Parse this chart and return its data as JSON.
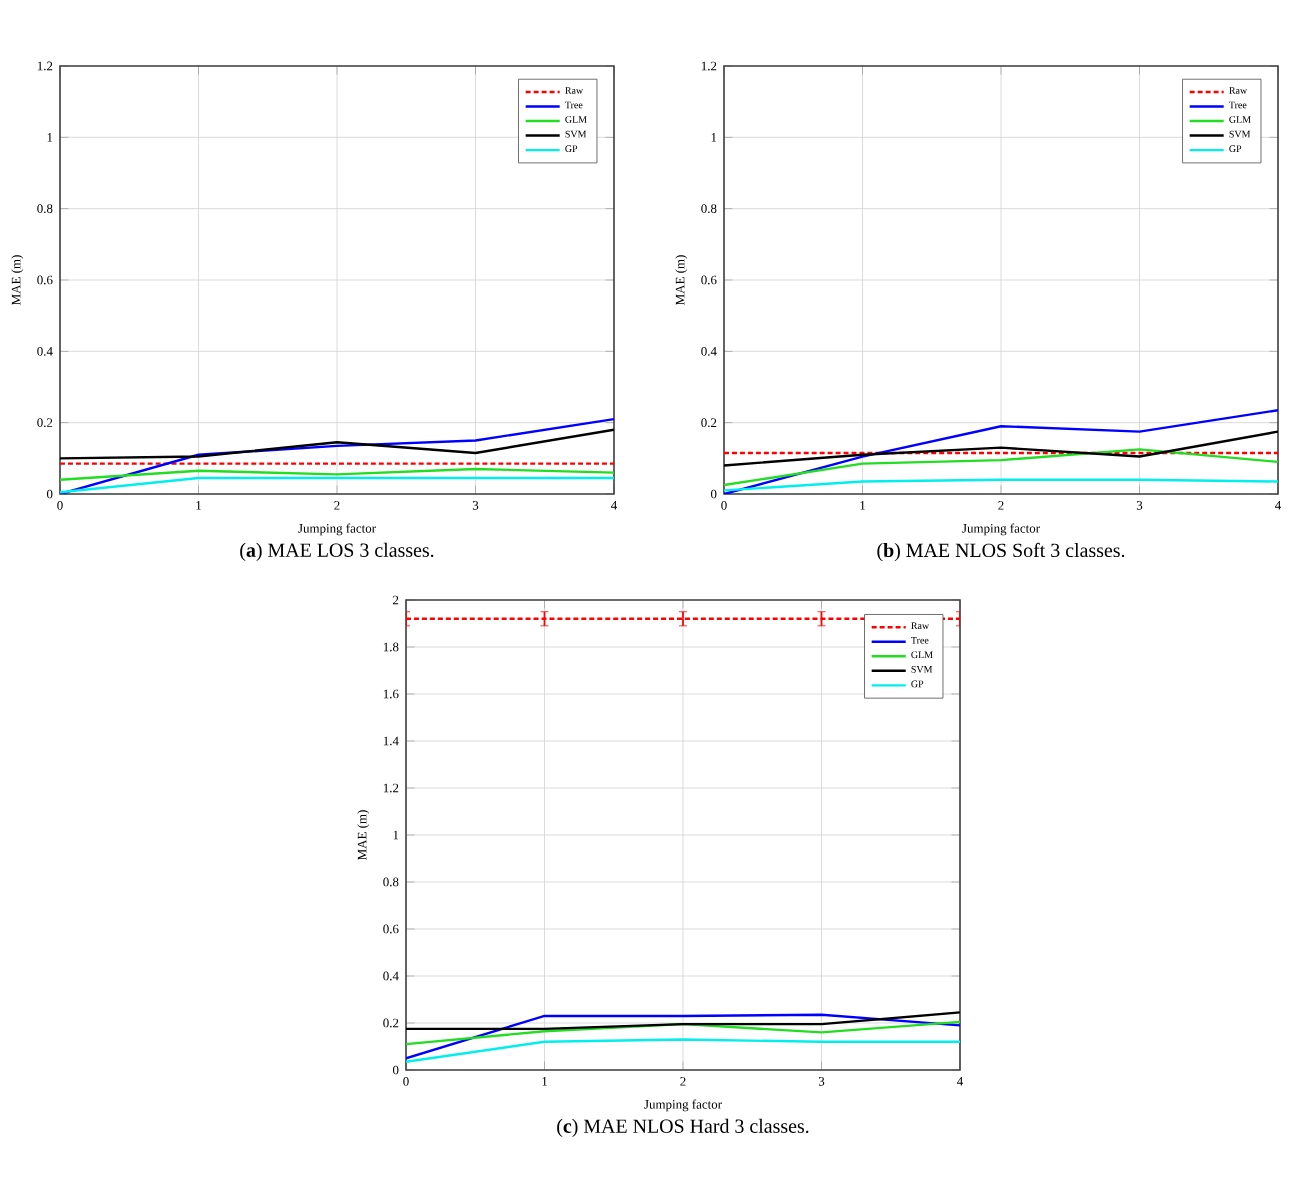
{
  "chart_data": [
    {
      "type": "line",
      "title": "(**a**) MAE LOS 3 classes.",
      "xlabel": "Jumping factor",
      "ylabel": "MAE (m)",
      "x": [
        0,
        1,
        2,
        3,
        4
      ],
      "xlim": [
        0,
        4
      ],
      "xticks": [
        0,
        1,
        2,
        3,
        4
      ],
      "ylim": [
        0,
        1.2
      ],
      "yticks": [
        0,
        0.2,
        0.4,
        0.6,
        0.8,
        1,
        1.2
      ],
      "grid": true,
      "legend": "top right",
      "marker": "none",
      "series": [
        {
          "name": "Raw",
          "color": "#ff0000",
          "line_style": "dashed",
          "values": [
            0.085,
            0.085,
            0.085,
            0.085,
            0.085
          ]
        },
        {
          "name": "Tree",
          "color": "#0000ff",
          "values": [
            0.0,
            0.11,
            0.135,
            0.15,
            0.21
          ]
        },
        {
          "name": "GLM",
          "color": "#22dd22",
          "values": [
            0.04,
            0.065,
            0.055,
            0.07,
            0.06
          ]
        },
        {
          "name": "SVM",
          "color": "#000000",
          "values": [
            0.1,
            0.105,
            0.145,
            0.115,
            0.18
          ]
        },
        {
          "name": "GP",
          "color": "#00eeee",
          "values": [
            0.005,
            0.045,
            0.045,
            0.045,
            0.045
          ]
        }
      ]
    },
    {
      "type": "line",
      "title": "(**b**) MAE NLOS Soft 3 classes.",
      "xlabel": "Jumping factor",
      "ylabel": "MAE (m)",
      "x": [
        0,
        1,
        2,
        3,
        4
      ],
      "xlim": [
        0,
        4
      ],
      "xticks": [
        0,
        1,
        2,
        3,
        4
      ],
      "ylim": [
        0,
        1.2
      ],
      "yticks": [
        0,
        0.2,
        0.4,
        0.6,
        0.8,
        1,
        1.2
      ],
      "grid": true,
      "legend": "top right",
      "marker": "none",
      "series": [
        {
          "name": "Raw",
          "color": "#ff0000",
          "line_style": "dashed",
          "values": [
            0.115,
            0.115,
            0.115,
            0.115,
            0.115
          ]
        },
        {
          "name": "Tree",
          "color": "#0000ff",
          "values": [
            0.0,
            0.105,
            0.19,
            0.175,
            0.235
          ]
        },
        {
          "name": "GLM",
          "color": "#22dd22",
          "values": [
            0.025,
            0.085,
            0.095,
            0.125,
            0.09
          ]
        },
        {
          "name": "SVM",
          "color": "#000000",
          "values": [
            0.08,
            0.11,
            0.13,
            0.105,
            0.175
          ]
        },
        {
          "name": "GP",
          "color": "#00eeee",
          "values": [
            0.01,
            0.035,
            0.04,
            0.04,
            0.035
          ]
        }
      ]
    },
    {
      "type": "line",
      "title": "(**c**) MAE NLOS Hard 3 classes.",
      "xlabel": "Jumping factor",
      "ylabel": "MAE (m)",
      "x": [
        0,
        1,
        2,
        3,
        4
      ],
      "xlim": [
        0,
        4
      ],
      "xticks": [
        0,
        1,
        2,
        3,
        4
      ],
      "ylim": [
        0,
        2
      ],
      "yticks": [
        0,
        0.2,
        0.4,
        0.6,
        0.8,
        1,
        1.2,
        1.4,
        1.6,
        1.8,
        2
      ],
      "grid": true,
      "legend": "top right",
      "marker": "none",
      "series": [
        {
          "name": "Raw",
          "color": "#ff0000",
          "line_style": "dashed",
          "values": [
            1.92,
            1.92,
            1.92,
            1.92,
            1.92
          ],
          "errors": [
            0.03,
            0.03,
            0.03,
            0.03,
            0.03
          ]
        },
        {
          "name": "Tree",
          "color": "#0000ff",
          "values": [
            0.05,
            0.23,
            0.23,
            0.235,
            0.19
          ]
        },
        {
          "name": "GLM",
          "color": "#22dd22",
          "values": [
            0.11,
            0.165,
            0.195,
            0.16,
            0.205
          ]
        },
        {
          "name": "SVM",
          "color": "#000000",
          "values": [
            0.175,
            0.175,
            0.195,
            0.195,
            0.245
          ]
        },
        {
          "name": "GP",
          "color": "#00eeee",
          "values": [
            0.035,
            0.12,
            0.13,
            0.12,
            0.12
          ]
        }
      ]
    }
  ]
}
